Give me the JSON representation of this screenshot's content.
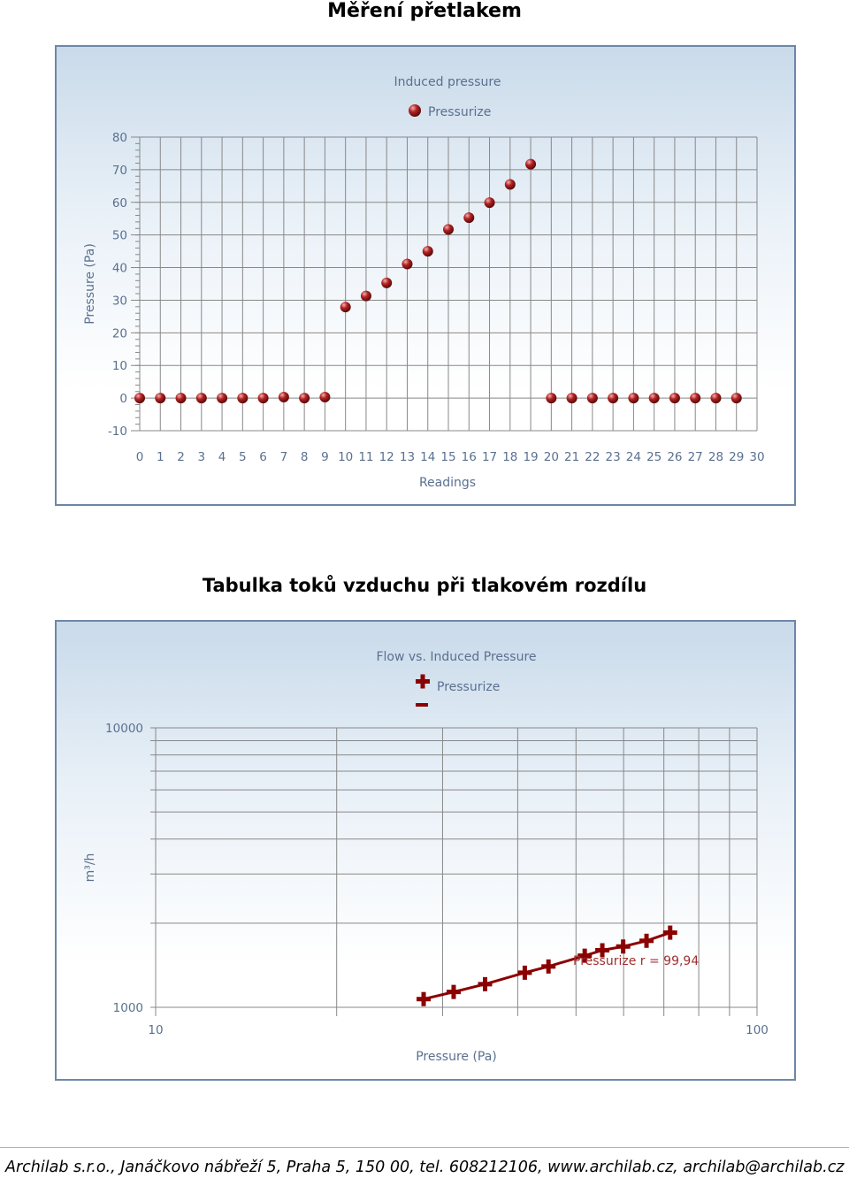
{
  "headings": {
    "chart1": "Měření přetlakem",
    "chart2": "Tabulka toků vzduchu při tlakovém rozdílu"
  },
  "footer": "Archilab s.r.o., Janáčkovo nábřeží 5, Praha 5, 150 00, tel. 608212106, www.archilab.cz, archilab@archilab.cz",
  "colors": {
    "marker": "#9b1c1c",
    "line": "#8b0000",
    "grid": "#888888",
    "axis_text": "#5a7090",
    "panel_border": "#6d87a8"
  },
  "chart_data": [
    {
      "type": "scatter",
      "title": "Induced pressure",
      "xlabel": "Readings",
      "ylabel": "Pressure (Pa)",
      "xlim": [
        0,
        30
      ],
      "ylim": [
        -10,
        80
      ],
      "x_ticks": [
        0,
        1,
        2,
        3,
        4,
        5,
        6,
        7,
        8,
        9,
        10,
        11,
        12,
        13,
        14,
        15,
        16,
        17,
        18,
        19,
        20,
        21,
        22,
        23,
        24,
        25,
        26,
        27,
        28,
        29,
        30
      ],
      "y_ticks": [
        -10,
        0,
        10,
        20,
        30,
        40,
        50,
        60,
        70,
        80
      ],
      "grid": true,
      "legend": "top-center",
      "series": [
        {
          "name": "Pressurize",
          "marker": "sphere",
          "x": [
            0,
            1,
            2,
            3,
            4,
            5,
            6,
            7,
            8,
            9,
            10,
            11,
            12,
            13,
            14,
            15,
            16,
            17,
            18,
            19,
            20,
            21,
            22,
            23,
            24,
            25,
            26,
            27,
            28,
            29
          ],
          "y": [
            0,
            0,
            0,
            0,
            0,
            0,
            0,
            0.3,
            0,
            0.3,
            27.9,
            31.3,
            35.3,
            41.1,
            45,
            51.7,
            55.3,
            59.9,
            65.5,
            71.7,
            0,
            0,
            0,
            0,
            0,
            0,
            0,
            0,
            0,
            0
          ]
        }
      ]
    },
    {
      "type": "line",
      "title": "Flow vs. Induced Pressure",
      "xlabel": "Pressure (Pa)",
      "ylabel": "m³/h",
      "x_scale": "log",
      "y_scale": "log",
      "xlim": [
        10,
        100
      ],
      "ylim": [
        1000,
        10000
      ],
      "x_tick_labels": [
        "10",
        "100"
      ],
      "y_tick_labels": [
        "1000",
        "10000"
      ],
      "grid": true,
      "legend": "top-center",
      "series": [
        {
          "name": "Pressurize",
          "marker": "plus",
          "x": [
            27.9,
            31.3,
            35.3,
            41.1,
            45,
            51.7,
            55.3,
            59.9,
            65.5,
            71.7
          ],
          "y": [
            1070,
            1135,
            1210,
            1330,
            1400,
            1530,
            1600,
            1650,
            1730,
            1850
          ]
        }
      ],
      "annotation": "Pressurize r = 99,94"
    }
  ]
}
